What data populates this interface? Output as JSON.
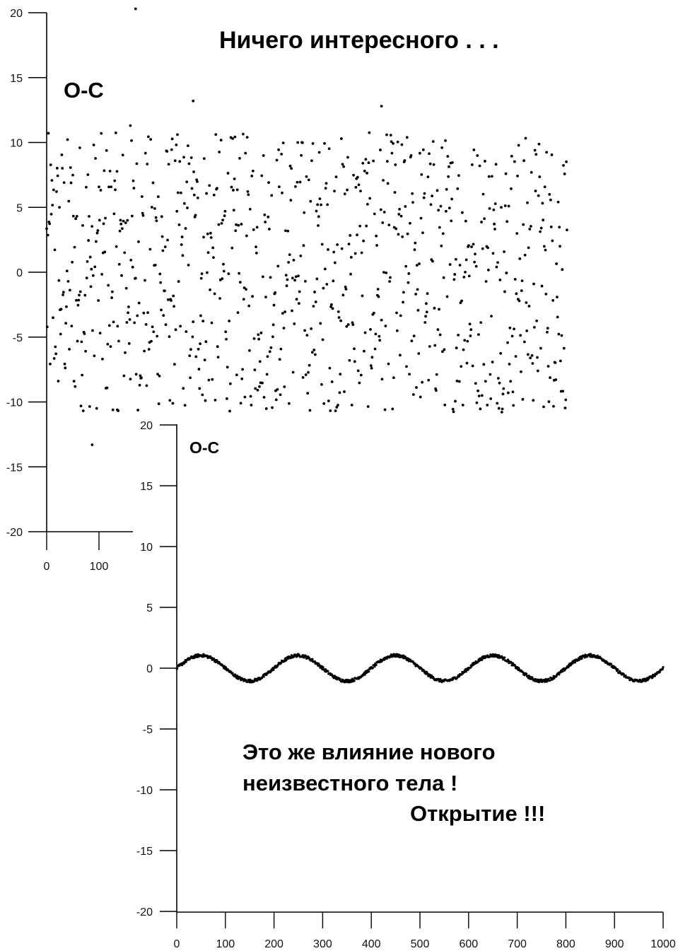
{
  "headline": "Ничего интересного . . .",
  "caption": {
    "line1": "Это же влияние нового",
    "line2": "неизвестного тела !",
    "line3": "Открытие !!!"
  },
  "colors": {
    "ink": "#000000",
    "background": "#ffffff"
  },
  "chart_data": [
    {
      "type": "scatter",
      "ylabel": "O-C",
      "ylim": [
        -20,
        20
      ],
      "xlim": [
        0,
        1000
      ],
      "y_ticks": [
        "-20",
        "-15",
        "-10",
        "-5",
        "0",
        "5",
        "10",
        "15",
        "20"
      ],
      "x_ticks_visible": [
        "0",
        "100"
      ],
      "sample_every": 1,
      "noise_amplitude": 10.8,
      "points_shown": 900,
      "outliers": [
        {
          "x": 170,
          "y": 20.3
        },
        {
          "x": 87,
          "y": -13.3
        },
        {
          "x": 280,
          "y": 13.2
        },
        {
          "x": 640,
          "y": 12.8
        },
        {
          "x": 160,
          "y": 11.3
        },
        {
          "x": 135,
          "y": -10.6
        }
      ],
      "grid": false
    },
    {
      "type": "scatter",
      "ylabel": "O-C",
      "ylim": [
        -20,
        20
      ],
      "xlim": [
        0,
        1000
      ],
      "y_ticks": [
        "-20",
        "-15",
        "-10",
        "-5",
        "0",
        "5",
        "10",
        "15",
        "20"
      ],
      "x_ticks": [
        "0",
        "100",
        "200",
        "300",
        "400",
        "500",
        "600",
        "700",
        "800",
        "900",
        "1000"
      ],
      "model": "y = A*sin(2*pi*x/P)",
      "amplitude": 1.05,
      "period": 200,
      "jitter": 0.12,
      "points_shown": 1000,
      "grid": false
    }
  ]
}
